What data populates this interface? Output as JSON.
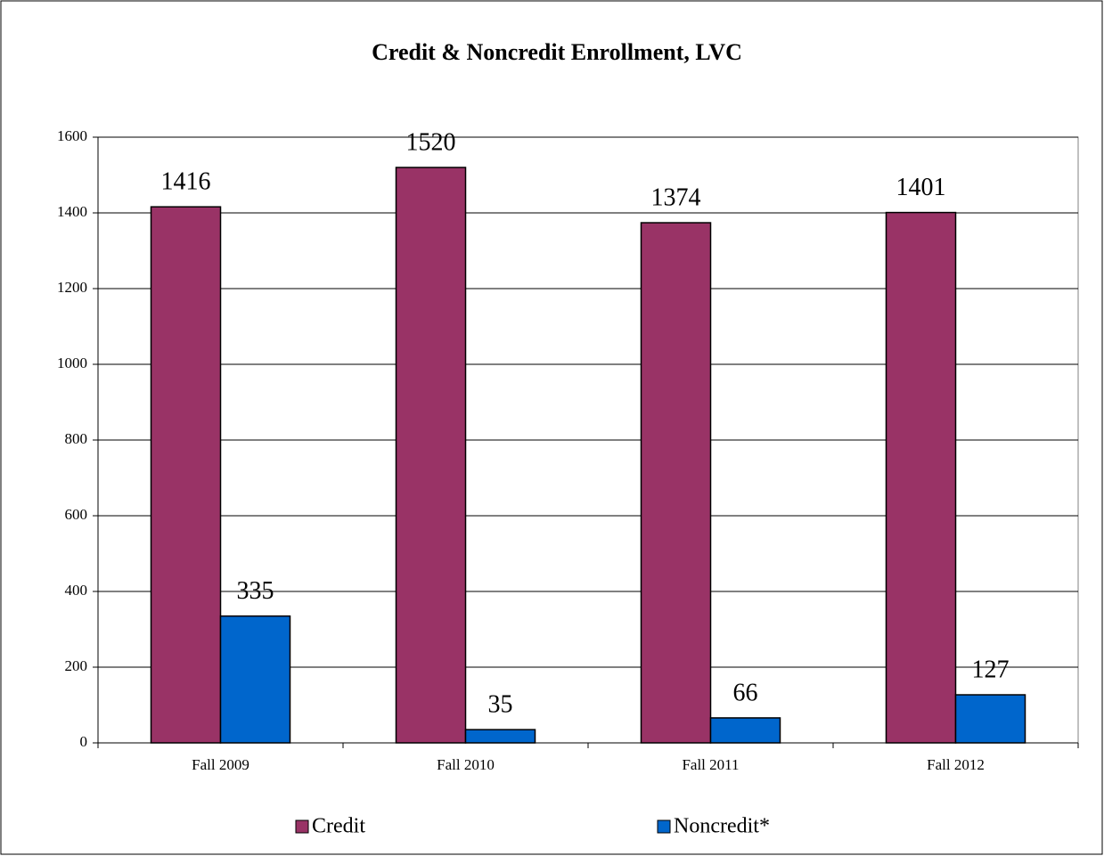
{
  "chart_data": {
    "type": "bar",
    "title": "Credit & Noncredit Enrollment, LVC",
    "categories": [
      "Fall 2009",
      "Fall 2010",
      "Fall 2011",
      "Fall 2012"
    ],
    "series": [
      {
        "name": "Credit",
        "color": "#993366",
        "values": [
          1416,
          1520,
          1374,
          1401
        ]
      },
      {
        "name": "Noncredit*",
        "color": "#0066cc",
        "values": [
          335,
          35,
          66,
          127
        ]
      }
    ],
    "ylim": [
      0,
      1600
    ],
    "yticks": [
      0,
      200,
      400,
      600,
      800,
      1000,
      1200,
      1400,
      1600
    ],
    "grid": true,
    "legend": "bottom"
  }
}
